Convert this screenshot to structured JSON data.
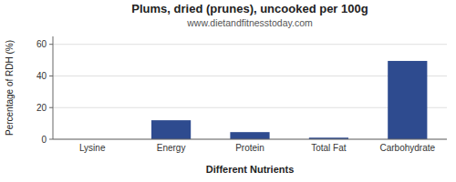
{
  "chart_data": {
    "type": "bar",
    "title": "Plums, dried (prunes), uncooked per 100g",
    "subtitle": "www.dietandfitnesstoday.com",
    "xlabel": "Different Nutrients",
    "ylabel": "Percentage of RDH (%)",
    "categories": [
      "Lysine",
      "Energy",
      "Protein",
      "Total Fat",
      "Carbohydrate"
    ],
    "values": [
      0.0,
      12.0,
      4.5,
      1.0,
      49.5
    ],
    "color": "#2e4b8f",
    "ylim": [
      0,
      65
    ],
    "yticks": [
      0,
      20,
      40,
      60
    ],
    "grid": true
  }
}
